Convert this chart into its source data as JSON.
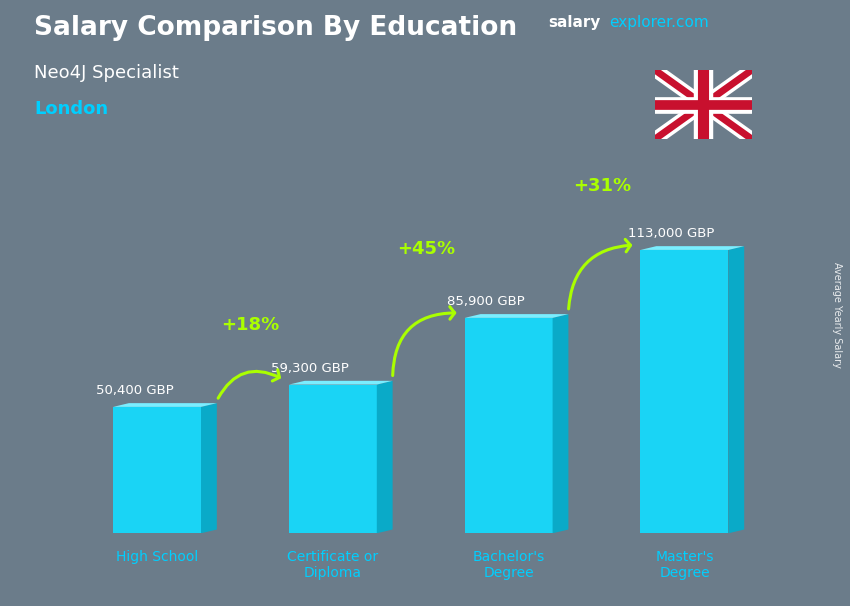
{
  "title": "Salary Comparison By Education",
  "subtitle1": "Neo4J Specialist",
  "subtitle2": "London",
  "ylabel": "Average Yearly Salary",
  "website_salary": "salary",
  "website_rest": "explorer.com",
  "categories": [
    "High School",
    "Certificate or\nDiploma",
    "Bachelor's\nDegree",
    "Master's\nDegree"
  ],
  "values": [
    50400,
    59300,
    85900,
    113000
  ],
  "labels": [
    "50,400 GBP",
    "59,300 GBP",
    "85,900 GBP",
    "113,000 GBP"
  ],
  "pct_changes": [
    "+18%",
    "+45%",
    "+31%"
  ],
  "bar_color_face": "#1ad4f5",
  "bar_color_side": "#0aaac8",
  "bar_color_top": "#7aeeff",
  "title_color": "#ffffff",
  "subtitle1_color": "#ffffff",
  "subtitle2_color": "#00CFFF",
  "label_color": "#ffffff",
  "pct_color": "#aaff00",
  "arrow_color": "#aaff00",
  "xtick_color": "#00CFFF",
  "bg_color": "#6b7c8a",
  "bar_width": 0.5,
  "ylim": [
    0,
    145000
  ],
  "xlim": [
    -0.7,
    3.7
  ]
}
